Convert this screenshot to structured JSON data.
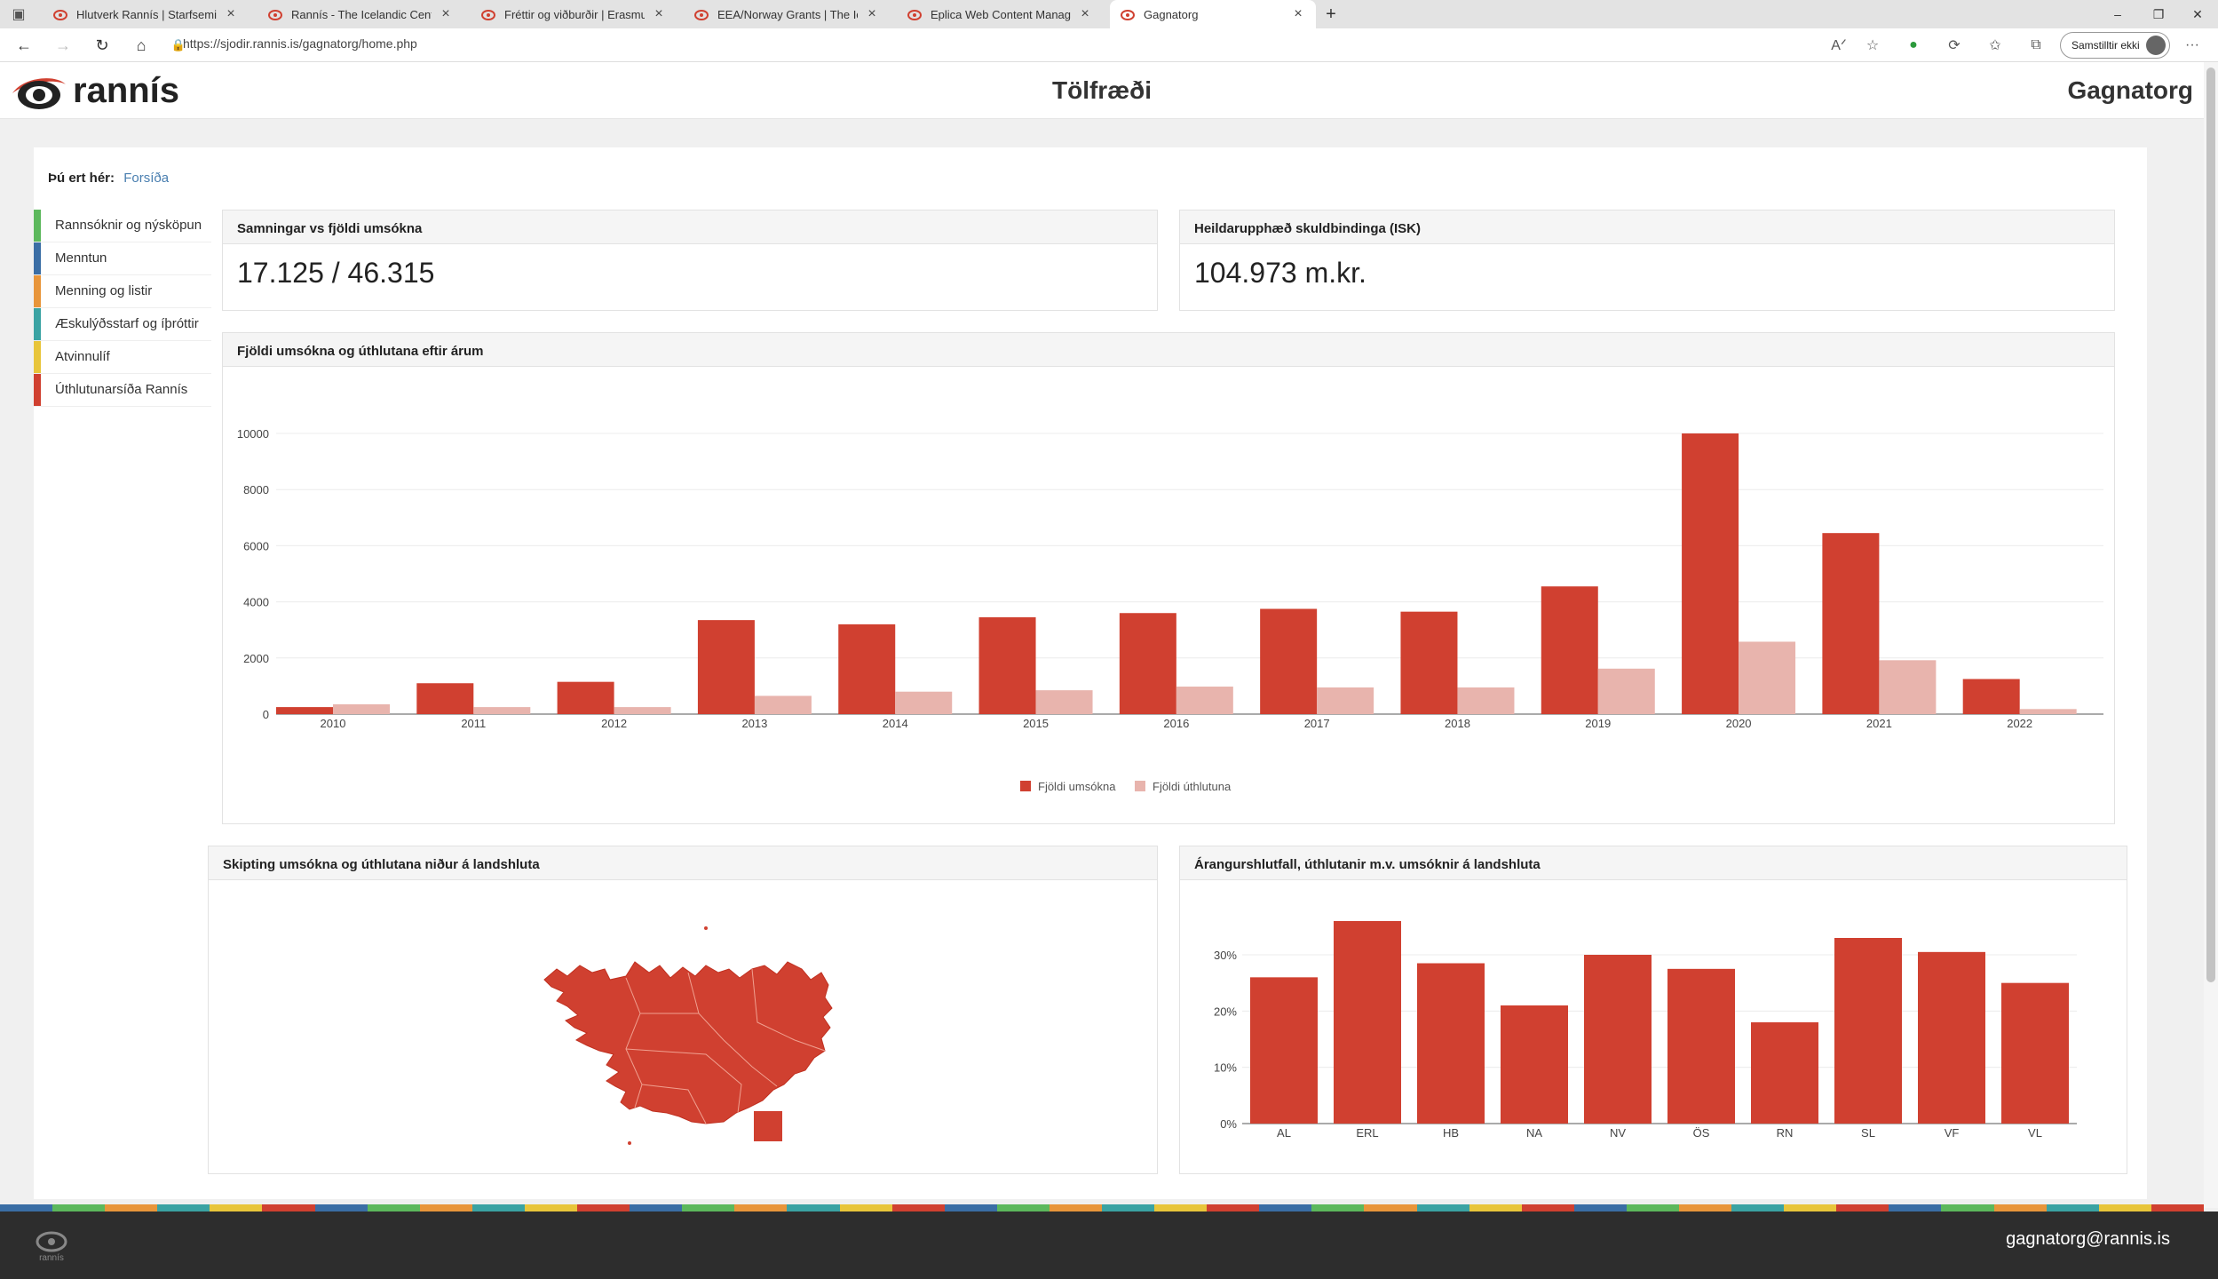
{
  "browser": {
    "tabs": [
      {
        "label": "Hlutverk Rannís | Starfsemi | Rannís",
        "active": false
      },
      {
        "label": "Rannís - The Icelandic Centre for Research",
        "active": false
      },
      {
        "label": "Fréttir og viðburðir | Erasmus+",
        "active": false
      },
      {
        "label": "EEA/Norway Grants | The Icelandic",
        "active": false
      },
      {
        "label": "Eplica Web Content Management",
        "active": false
      },
      {
        "label": "Gagnatorg",
        "active": true
      }
    ],
    "new_tab": "+",
    "url": "https://sjodir.rannis.is/gagnatorg/home.php",
    "profile_label": "Samstilltir ekki"
  },
  "header": {
    "logo_text": "rannís",
    "title": "Tölfræði",
    "brand": "Gagnatorg"
  },
  "breadcrumb": {
    "label": "Þú ert hér:",
    "link": "Forsíða"
  },
  "sidebar": {
    "items": [
      {
        "label": "Rannsóknir og nýsköpun",
        "color": "#5cb85c"
      },
      {
        "label": "Menntun",
        "color": "#3a6ea5"
      },
      {
        "label": "Menning og listir",
        "color": "#e8953a"
      },
      {
        "label": "Æskulýðsstarf og íþróttir",
        "color": "#3aa3a3"
      },
      {
        "label": "Atvinnulíf",
        "color": "#e8c53a"
      },
      {
        "label": "Úthlutunarsíða Rannís",
        "color": "#d04030"
      }
    ]
  },
  "stats": {
    "contracts": {
      "title": "Samningar vs fjöldi umsókna",
      "value": "17.125 / 46.315"
    },
    "total": {
      "title": "Heildarupphæð skuldbindinga (ISK)",
      "value": "104.973 m.kr."
    }
  },
  "colors": {
    "primary": "#d04030",
    "secondary": "#e8b4ad"
  },
  "panels": {
    "yearly_title": "Fjöldi umsókna og úthlutana eftir árum",
    "map_title": "Skipting umsókna og úthlutana niður á landshluta",
    "rate_title": "Árangurshlutfall, úthlutanir m.v. umsóknir á landshluta"
  },
  "chart_data": [
    {
      "type": "bar",
      "title": "Fjöldi umsókna og úthlutana eftir árum",
      "categories": [
        "2010",
        "2011",
        "2012",
        "2013",
        "2014",
        "2015",
        "2016",
        "2017",
        "2018",
        "2019",
        "2020",
        "2021",
        "2022"
      ],
      "series": [
        {
          "name": "Fjöldi umsókna",
          "values": [
            250,
            1100,
            1150,
            3350,
            3200,
            3450,
            3600,
            3750,
            3650,
            4550,
            10000,
            6450,
            1250
          ]
        },
        {
          "name": "Fjöldi úthlutuna",
          "values": [
            350,
            250,
            250,
            650,
            800,
            850,
            980,
            950,
            950,
            1620,
            2580,
            1920,
            180
          ]
        }
      ],
      "ylim": [
        0,
        10000
      ],
      "yticks": [
        "0",
        "2000",
        "4000",
        "6000",
        "8000",
        "10000"
      ],
      "grid": true,
      "legend": "bottom"
    },
    {
      "type": "bar",
      "title": "Árangurshlutfall, úthlutanir m.v. umsóknir á landshluta",
      "categories": [
        "AL",
        "ERL",
        "HB",
        "NA",
        "NV",
        "ÖS",
        "RN",
        "SL",
        "VF",
        "VL"
      ],
      "values": [
        26,
        36,
        28.5,
        21,
        30,
        27.5,
        18,
        33,
        30.5,
        25
      ],
      "ylim": [
        0,
        36
      ],
      "yticks": [
        "0%",
        "10%",
        "20%",
        "30%"
      ],
      "grid": true
    }
  ],
  "footer": {
    "logo_text": "rannís",
    "email": "gagnatorg@rannis.is"
  }
}
